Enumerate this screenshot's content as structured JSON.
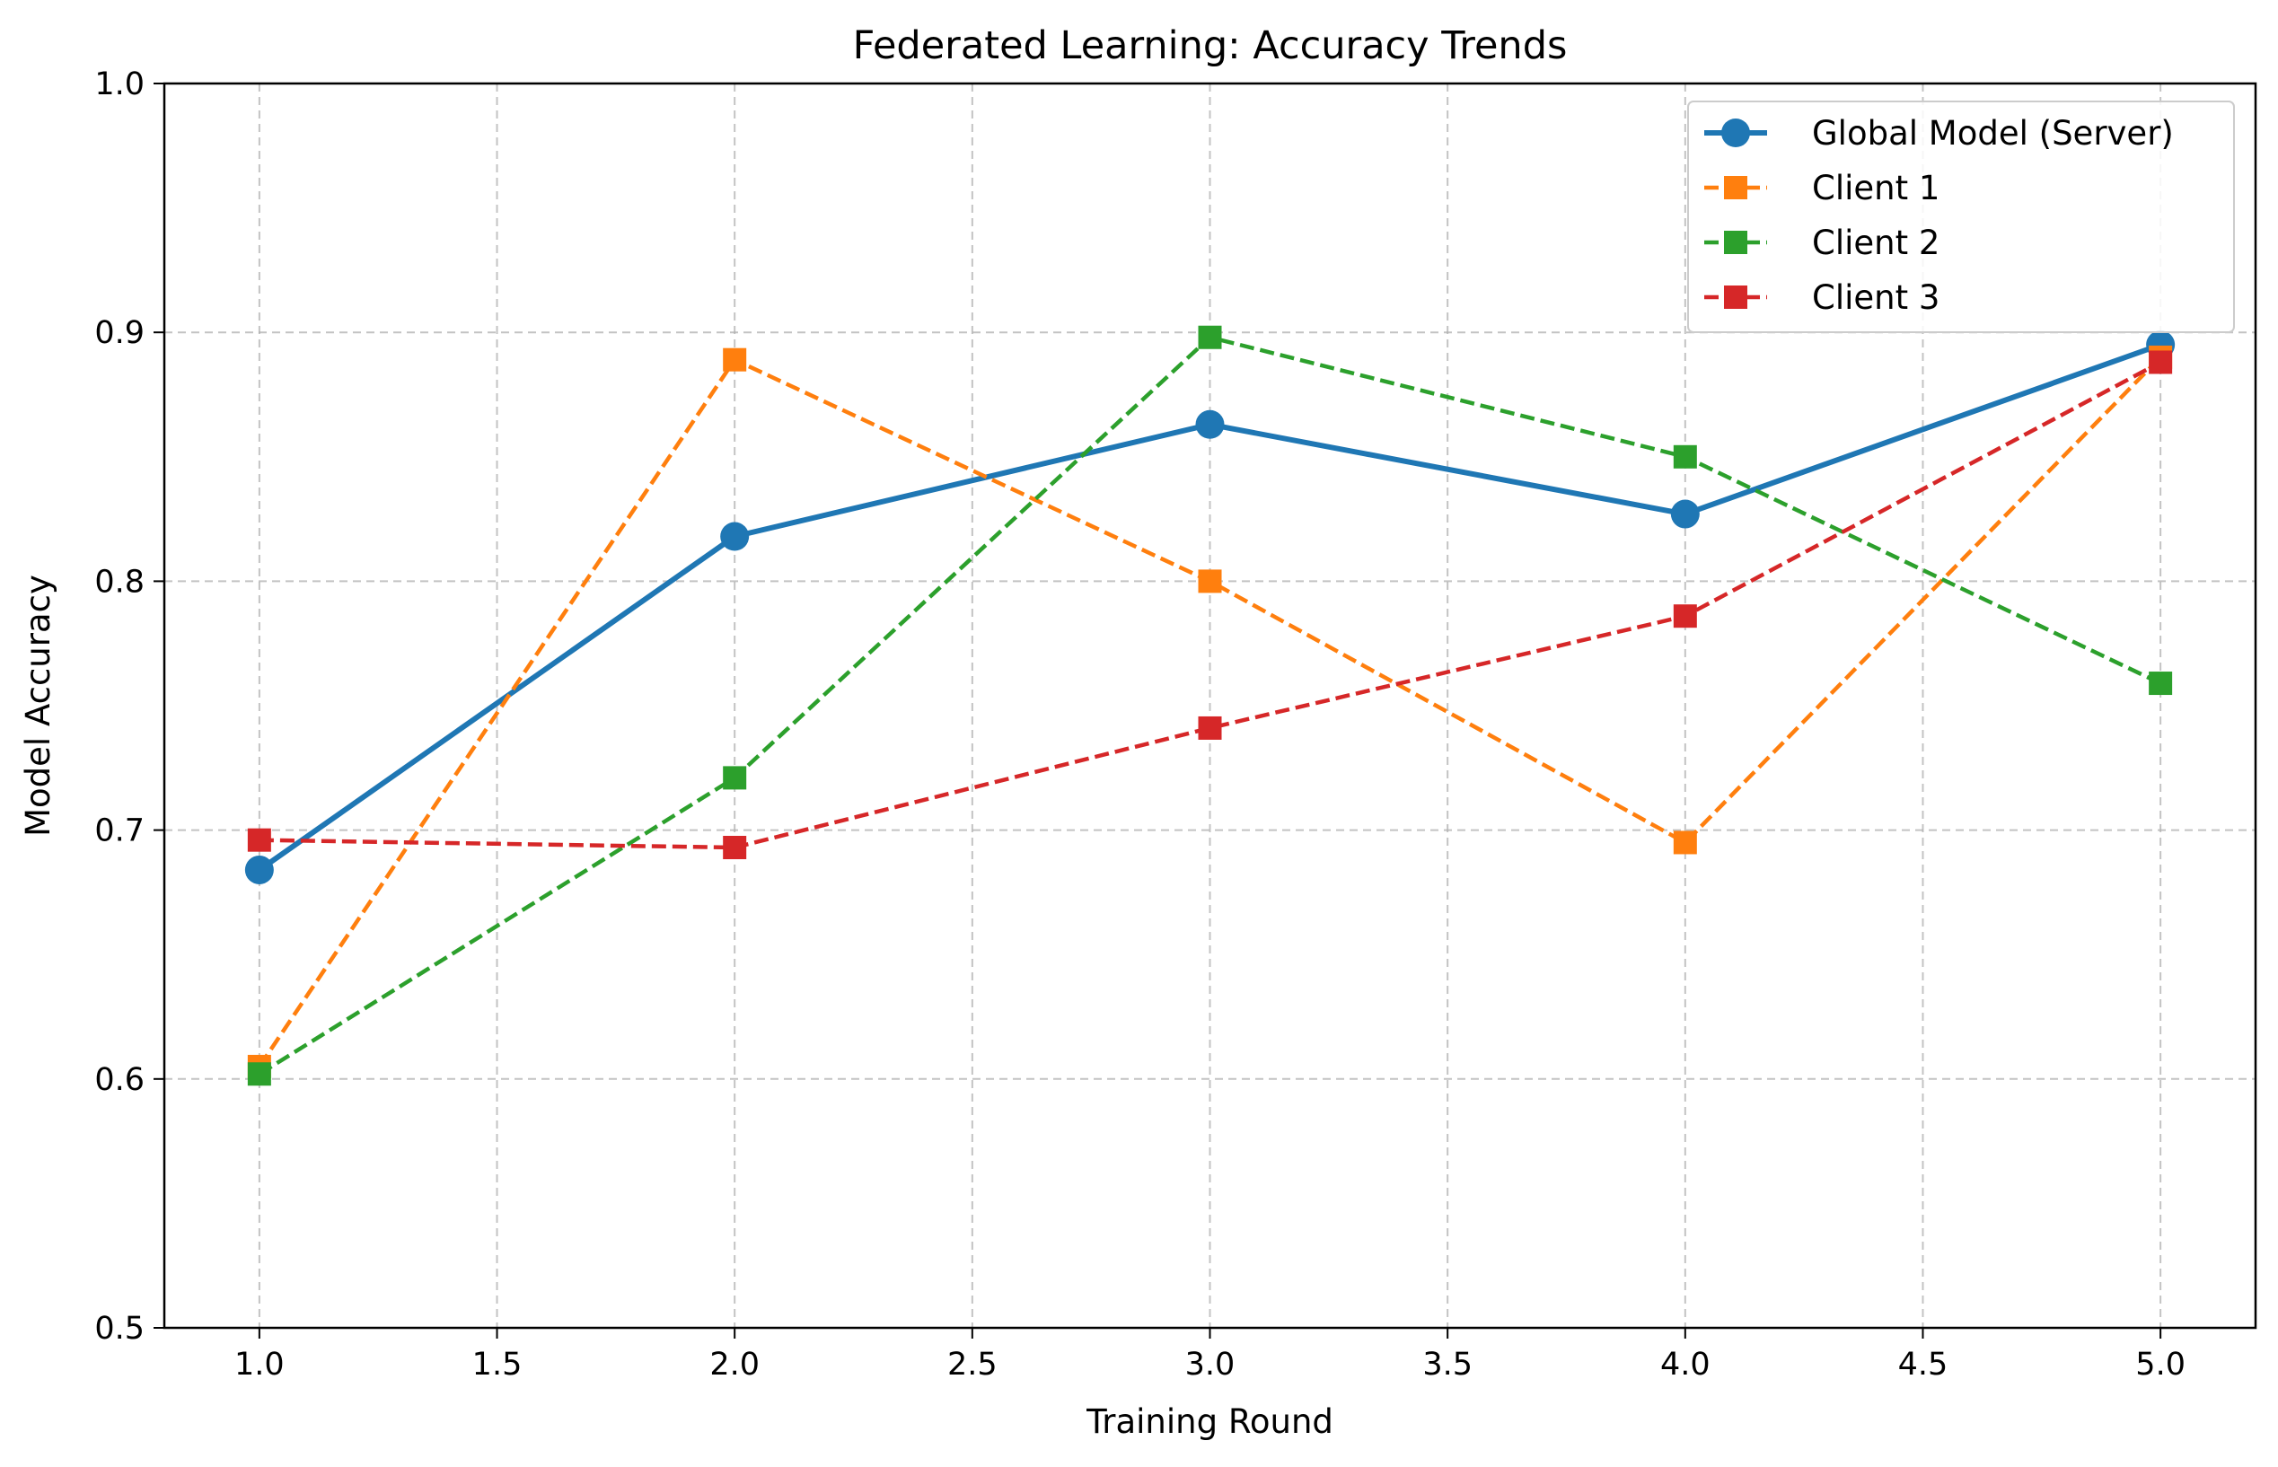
{
  "chart_data": {
    "type": "line",
    "title": "Federated Learning: Accuracy Trends",
    "xlabel": "Training Round",
    "ylabel": "Model Accuracy",
    "xlim": [
      0.8,
      5.2
    ],
    "ylim": [
      0.5,
      1.0
    ],
    "x_ticks": [
      "1.0",
      "1.5",
      "2.0",
      "2.5",
      "3.0",
      "3.5",
      "4.0",
      "4.5",
      "5.0"
    ],
    "y_ticks": [
      "0.5",
      "0.6",
      "0.7",
      "0.8",
      "0.9",
      "1.0"
    ],
    "grid": true,
    "legend_position": "top-right",
    "x": [
      1,
      2,
      3,
      4,
      5
    ],
    "series": [
      {
        "name": "Global Model (Server)",
        "values": [
          0.684,
          0.818,
          0.863,
          0.827,
          0.895
        ],
        "color": "#1f77b4",
        "line_style": "solid",
        "marker": "circle"
      },
      {
        "name": "Client 1",
        "values": [
          0.605,
          0.889,
          0.8,
          0.695,
          0.89
        ],
        "color": "#ff7f0e",
        "line_style": "dashed",
        "marker": "square"
      },
      {
        "name": "Client 2",
        "values": [
          0.602,
          0.721,
          0.898,
          0.85,
          0.759
        ],
        "color": "#2ca02c",
        "line_style": "dashed",
        "marker": "square"
      },
      {
        "name": "Client 3",
        "values": [
          0.696,
          0.693,
          0.741,
          0.786,
          0.888
        ],
        "color": "#d62728",
        "line_style": "dashed",
        "marker": "square"
      }
    ]
  }
}
